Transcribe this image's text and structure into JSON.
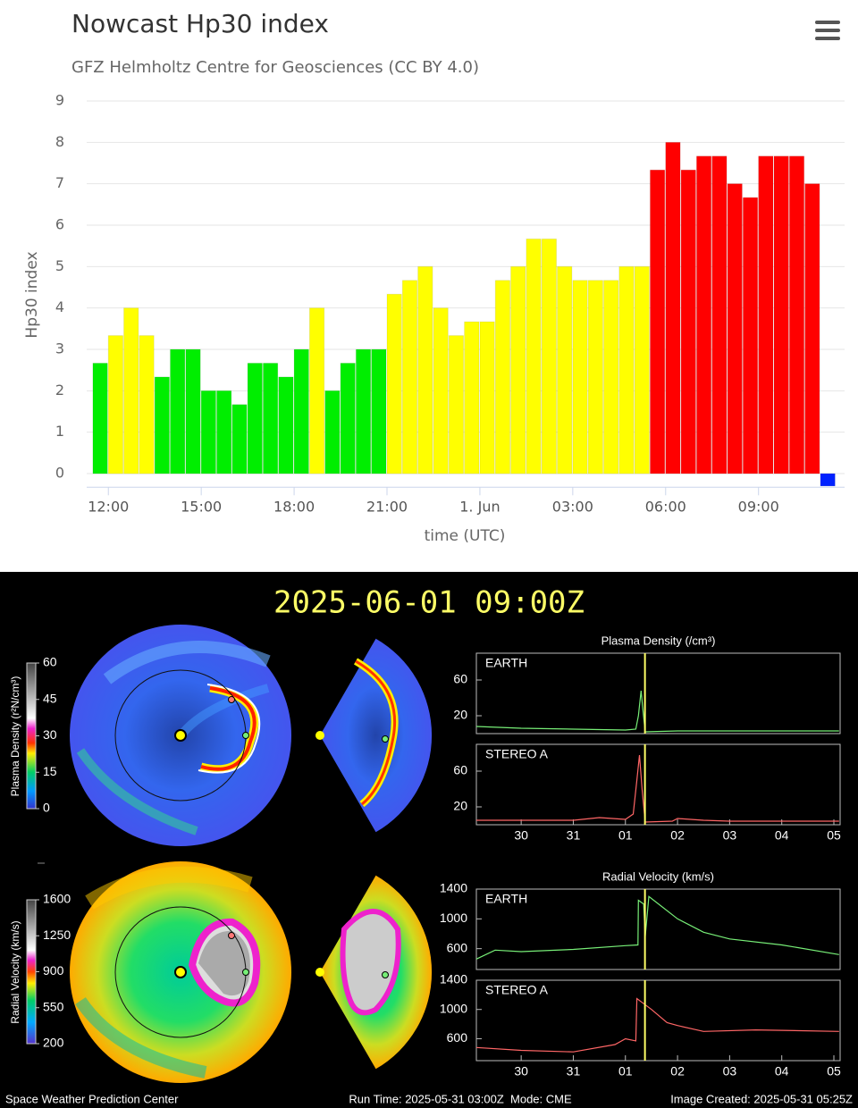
{
  "chart_data": [
    {
      "type": "bar",
      "title": "Nowcast Hp30 index",
      "subtitle": "GFZ Helmholtz Centre for Geosciences (CC BY 4.0)",
      "y_label": "Hp30 index",
      "x_label": "time (UTC)",
      "x": [
        11.5,
        12,
        12.5,
        13,
        13.5,
        14,
        14.5,
        15,
        15.5,
        16,
        16.5,
        17,
        17.5,
        18,
        18.5,
        19,
        19.5,
        20,
        20.5,
        21,
        21.5,
        22,
        22.5,
        23,
        23.5,
        24,
        24.5,
        25,
        25.5,
        26,
        26.5,
        27,
        27.5,
        28,
        28.5,
        29,
        29.5,
        30,
        30.5,
        31,
        31.5,
        32,
        32.5,
        33,
        33.5,
        34,
        34.5,
        35
      ],
      "values": [
        2.667,
        3.333,
        4,
        3.333,
        2.333,
        3,
        3,
        2,
        2,
        1.667,
        2.667,
        2.667,
        2.333,
        3,
        4,
        2,
        2.667,
        3,
        3,
        4.333,
        4.667,
        5,
        4,
        3.333,
        3.667,
        3.667,
        4.667,
        5,
        5.667,
        5.667,
        5,
        4.667,
        4.667,
        4.667,
        5,
        5,
        7.333,
        8,
        7.333,
        7.667,
        7.667,
        7,
        6.667,
        7.667,
        7.667,
        7.667,
        7,
        -0.3
      ],
      "colors": [
        "#00ee00",
        "#ffff00",
        "#ffff00",
        "#ffff00",
        "#00ee00",
        "#00ee00",
        "#00ee00",
        "#00ee00",
        "#00ee00",
        "#00ee00",
        "#00ee00",
        "#00ee00",
        "#00ee00",
        "#00ee00",
        "#ffff00",
        "#00ee00",
        "#00ee00",
        "#00ee00",
        "#00ee00",
        "#ffff00",
        "#ffff00",
        "#ffff00",
        "#ffff00",
        "#ffff00",
        "#ffff00",
        "#ffff00",
        "#ffff00",
        "#ffff00",
        "#ffff00",
        "#ffff00",
        "#ffff00",
        "#ffff00",
        "#ffff00",
        "#ffff00",
        "#ffff00",
        "#ffff00",
        "#ff0000",
        "#ff0000",
        "#ff0000",
        "#ff0000",
        "#ff0000",
        "#ff0000",
        "#ff0000",
        "#ff0000",
        "#ff0000",
        "#ff0000",
        "#ff0000",
        "#0022ff"
      ],
      "xlim": [
        11.3,
        35.78
      ],
      "ylim": [
        -0.33,
        9
      ],
      "yticks": [
        0,
        1,
        2,
        3,
        4,
        5,
        6,
        7,
        8,
        9
      ],
      "xticks": [
        {
          "value": 12,
          "label": "12:00"
        },
        {
          "value": 15,
          "label": "15:00"
        },
        {
          "value": 18,
          "label": "18:00"
        },
        {
          "value": 21,
          "label": "21:00"
        },
        {
          "value": 24,
          "label": "1. Jun"
        },
        {
          "value": 27,
          "label": "03:00"
        },
        {
          "value": 30,
          "label": "06:00"
        },
        {
          "value": 33,
          "label": "09:00"
        }
      ],
      "grid": true
    },
    {
      "type": "line",
      "title": "Plasma Density (/cm³)",
      "x": [
        -0.86,
        0,
        1,
        2,
        2.2,
        2.25,
        2.3,
        2.33,
        2.38,
        3,
        4,
        5,
        6.1
      ],
      "series": [
        {
          "name": "EARTH",
          "color": "#77ee77",
          "values": [
            8,
            6,
            5,
            4,
            5,
            20,
            48,
            30,
            2,
            3,
            3,
            3,
            3
          ]
        }
      ],
      "xlim": [
        -0.86,
        6.12
      ],
      "ylim": [
        0,
        90
      ],
      "yticks": [
        20,
        60
      ],
      "now_line": 2.375
    },
    {
      "type": "line",
      "x": [
        -0.86,
        0,
        1,
        1.5,
        2,
        2.15,
        2.22,
        2.27,
        2.32,
        2.38,
        2.9,
        3,
        3.5,
        4,
        6.1
      ],
      "series": [
        {
          "name": "STEREO A",
          "color": "#ff6666",
          "values": [
            5,
            5,
            5,
            8,
            6,
            12,
            50,
            78,
            40,
            3,
            4,
            7,
            5,
            4,
            4
          ]
        }
      ],
      "xlim": [
        -0.86,
        6.12
      ],
      "ylim": [
        0,
        90
      ],
      "yticks": [
        20,
        60
      ],
      "now_line": 2.375,
      "xticks": [
        {
          "value": 0,
          "label": "30"
        },
        {
          "value": 1,
          "label": "31"
        },
        {
          "value": 2,
          "label": "01"
        },
        {
          "value": 3,
          "label": "02"
        },
        {
          "value": 4,
          "label": "03"
        },
        {
          "value": 5,
          "label": "04"
        },
        {
          "value": 6,
          "label": "05"
        }
      ]
    },
    {
      "type": "line",
      "title": "Radial Velocity (km/s)",
      "x": [
        -0.86,
        -0.5,
        0,
        1,
        2,
        2.24,
        2.25,
        2.35,
        2.38,
        2.45,
        3,
        3.5,
        4,
        5,
        6.1
      ],
      "series": [
        {
          "name": "EARTH",
          "color": "#77ee77",
          "values": [
            460,
            580,
            560,
            590,
            640,
            650,
            1250,
            1200,
            760,
            1300,
            1000,
            820,
            730,
            650,
            520
          ]
        }
      ],
      "xlim": [
        -0.86,
        6.12
      ],
      "ylim": [
        320,
        1400
      ],
      "yticks": [
        600,
        1000,
        1400
      ],
      "now_line": 2.375
    },
    {
      "type": "line",
      "x": [
        -0.86,
        0,
        1,
        1.8,
        2,
        2.2,
        2.22,
        2.35,
        2.5,
        2.8,
        3,
        3.5,
        4.5,
        6.1
      ],
      "series": [
        {
          "name": "STEREO A",
          "color": "#ff6666",
          "values": [
            480,
            440,
            420,
            520,
            600,
            570,
            1150,
            1080,
            1000,
            820,
            780,
            700,
            720,
            700
          ]
        }
      ],
      "xlim": [
        -0.86,
        6.12
      ],
      "ylim": [
        300,
        1400
      ],
      "yticks": [
        600,
        1000,
        1400
      ],
      "now_line": 2.375,
      "xticks": [
        {
          "value": 0,
          "label": "30"
        },
        {
          "value": 1,
          "label": "31"
        },
        {
          "value": 2,
          "label": "01"
        },
        {
          "value": 3,
          "label": "02"
        },
        {
          "value": 4,
          "label": "03"
        },
        {
          "value": 5,
          "label": "04"
        },
        {
          "value": 6,
          "label": "05"
        }
      ]
    }
  ],
  "simulation": {
    "timestamp": "2025-06-01 09:00Z",
    "colorbars": [
      {
        "label": "Plasma Density (r²N/cm³)",
        "range": [
          0,
          60
        ],
        "ticks": [
          0,
          15,
          30,
          45,
          60
        ]
      },
      {
        "label": "Radial Velocity (km/s)",
        "range": [
          200,
          1600
        ],
        "ticks": [
          200,
          550,
          900,
          1250,
          1600
        ]
      }
    ],
    "footer": {
      "left": "Space Weather Prediction Center",
      "center": "Run Time: 2025-05-31 03:00Z  Mode: CME",
      "right": "Image Created: 2025-05-31 05:25Z"
    }
  }
}
